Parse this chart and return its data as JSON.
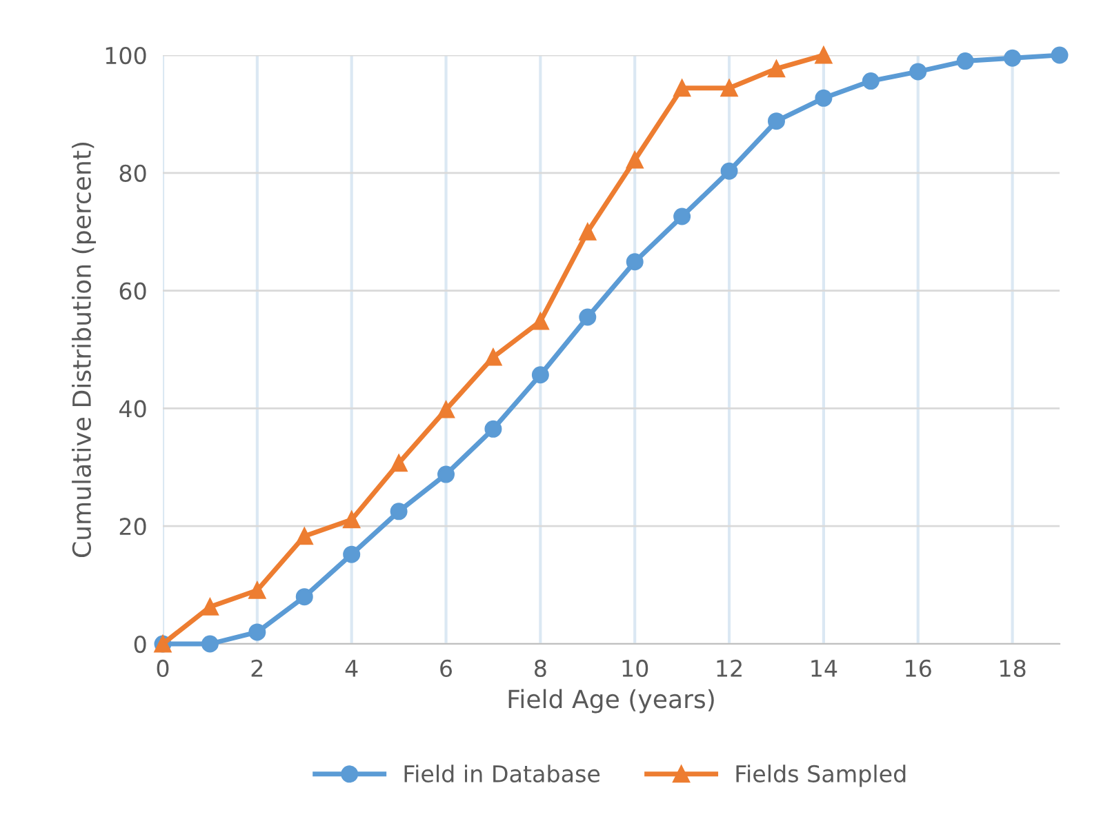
{
  "chart_data": {
    "type": "line",
    "xlabel": "Field Age (years)",
    "ylabel": "Cumulative Distribution (percent)",
    "xlim": [
      0,
      19
    ],
    "xticks": [
      0,
      2,
      4,
      6,
      8,
      10,
      12,
      14,
      16,
      18
    ],
    "ylim": [
      0,
      100
    ],
    "yticks": [
      0,
      20,
      40,
      60,
      80,
      100
    ],
    "grid": true,
    "legend": "bottom",
    "series": [
      {
        "name": "Field in Database",
        "color": "#5b9bd5",
        "marker": "circle",
        "x": [
          0,
          1,
          2,
          3,
          4,
          5,
          6,
          7,
          8,
          9,
          10,
          11,
          12,
          13,
          14,
          15,
          16,
          17,
          18,
          19
        ],
        "values": [
          0,
          0,
          2,
          8,
          15.2,
          22.5,
          28.8,
          36.5,
          45.7,
          55.5,
          64.9,
          72.6,
          80.3,
          88.8,
          92.7,
          95.6,
          97.2,
          99,
          99.5,
          100
        ]
      },
      {
        "name": "Fields Sampled",
        "color": "#ed7d31",
        "marker": "triangle",
        "x": [
          0,
          1,
          2,
          3,
          4,
          5,
          6,
          7,
          8,
          9,
          10,
          11,
          12,
          13,
          14
        ],
        "values": [
          0,
          6.3,
          9.1,
          18.3,
          21.1,
          30.7,
          39.8,
          48.7,
          54.8,
          70,
          82.2,
          94.4,
          94.4,
          97.7,
          100
        ]
      }
    ]
  }
}
